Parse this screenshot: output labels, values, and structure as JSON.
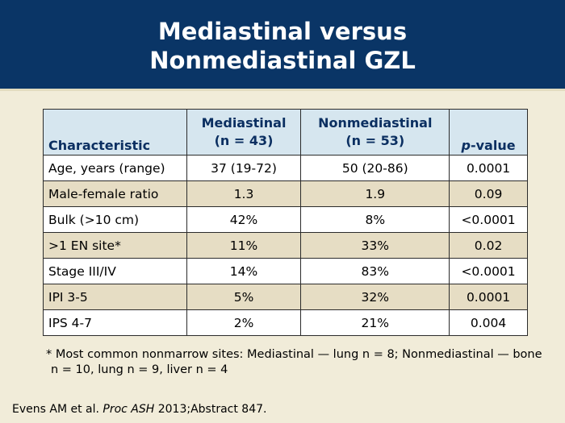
{
  "header": {
    "title_line1": "Mediastinal versus",
    "title_line2": "Nonmediastinal GZL",
    "background_color": "#0a3566"
  },
  "table": {
    "headers": {
      "characteristic": "Characteristic",
      "mediastinal": "Mediastinal",
      "mediastinal_n": "(n = 43)",
      "nonmediastinal": "Nonmediastinal",
      "nonmediastinal_n": "(n = 53)",
      "p_italic": "p",
      "p_rest": "-value"
    },
    "header_color": "#d6e6ef",
    "rows": [
      {
        "characteristic": "Age, years (range)",
        "mediastinal": "37 (19-72)",
        "nonmediastinal": "50 (20-86)",
        "p_value": "0.0001"
      },
      {
        "characteristic": "Male-female ratio",
        "mediastinal": "1.3",
        "nonmediastinal": "1.9",
        "p_value": "0.09"
      },
      {
        "characteristic": "Bulk (>10 cm)",
        "mediastinal": "42%",
        "nonmediastinal": "8%",
        "p_value": "<0.0001"
      },
      {
        "characteristic": ">1 EN site*",
        "mediastinal": "11%",
        "nonmediastinal": "33%",
        "p_value": "0.02"
      },
      {
        "characteristic": "Stage III/IV",
        "mediastinal": "14%",
        "nonmediastinal": "83%",
        "p_value": "<0.0001"
      },
      {
        "characteristic": "IPI 3-5",
        "mediastinal": "5%",
        "nonmediastinal": "32%",
        "p_value": "0.0001"
      },
      {
        "characteristic": "IPS 4-7",
        "mediastinal": "2%",
        "nonmediastinal": "21%",
        "p_value": "0.004"
      }
    ]
  },
  "footnote": "* Most common nonmarrow sites: Mediastinal — lung n = 8; Nonmediastinal — bone n = 10, lung n = 9, liver n = 4",
  "citation": {
    "authors": "Evens AM et al. ",
    "journal": "Proc ASH",
    "rest": " 2013;Abstract 847."
  }
}
